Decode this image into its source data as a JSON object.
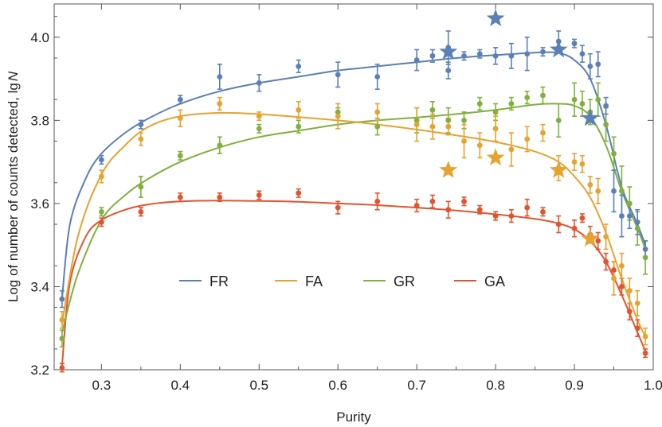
{
  "chart_data": {
    "type": "scatter",
    "xlabel": "Purity",
    "ylabel": "Log of number of counts detected, lg",
    "ylabel_var": "N",
    "xlim": [
      0.24,
      1.0
    ],
    "ylim": [
      3.2,
      4.08
    ],
    "xticks": [
      "0.3",
      "0.4",
      "0.5",
      "0.6",
      "0.7",
      "0.8",
      "0.9",
      "1.0"
    ],
    "yticks": [
      "3.2",
      "3.4",
      "3.6",
      "3.8",
      "4.0"
    ],
    "legend_position": "lower-center",
    "series": [
      {
        "name": "FR",
        "color": "#5b80b8",
        "points": [
          [
            0.25,
            3.37,
            0.02
          ],
          [
            0.3,
            3.705,
            0.01
          ],
          [
            0.35,
            3.79,
            0.01
          ],
          [
            0.4,
            3.85,
            0.01
          ],
          [
            0.45,
            3.905,
            0.03
          ],
          [
            0.5,
            3.89,
            0.02
          ],
          [
            0.55,
            3.93,
            0.015
          ],
          [
            0.6,
            3.91,
            0.03
          ],
          [
            0.65,
            3.905,
            0.03
          ],
          [
            0.7,
            3.945,
            0.025
          ],
          [
            0.72,
            3.955,
            0.015
          ],
          [
            0.74,
            3.92,
            0.02
          ],
          [
            0.74,
            3.975,
            0.04
          ],
          [
            0.76,
            3.955,
            0.01
          ],
          [
            0.78,
            3.96,
            0.01
          ],
          [
            0.8,
            3.955,
            0.02
          ],
          [
            0.82,
            3.955,
            0.03
          ],
          [
            0.84,
            3.96,
            0.04
          ],
          [
            0.86,
            3.965,
            0.01
          ],
          [
            0.88,
            3.99,
            0.025
          ],
          [
            0.9,
            3.985,
            0.01
          ],
          [
            0.91,
            3.96,
            0.02
          ],
          [
            0.92,
            3.93,
            0.03
          ],
          [
            0.93,
            3.935,
            0.03
          ],
          [
            0.94,
            3.835,
            0.02
          ],
          [
            0.95,
            3.63,
            0.05
          ],
          [
            0.96,
            3.57,
            0.05
          ],
          [
            0.97,
            3.57,
            0.03
          ],
          [
            0.98,
            3.555,
            0.03
          ],
          [
            0.99,
            3.49,
            0.02
          ]
        ],
        "fit": [
          [
            0.25,
            3.37
          ],
          [
            0.26,
            3.55
          ],
          [
            0.28,
            3.66
          ],
          [
            0.3,
            3.72
          ],
          [
            0.33,
            3.77
          ],
          [
            0.36,
            3.805
          ],
          [
            0.4,
            3.84
          ],
          [
            0.45,
            3.87
          ],
          [
            0.5,
            3.89
          ],
          [
            0.55,
            3.905
          ],
          [
            0.6,
            3.92
          ],
          [
            0.65,
            3.93
          ],
          [
            0.7,
            3.94
          ],
          [
            0.75,
            3.95
          ],
          [
            0.8,
            3.957
          ],
          [
            0.85,
            3.963
          ],
          [
            0.88,
            3.962
          ],
          [
            0.9,
            3.945
          ],
          [
            0.92,
            3.9
          ],
          [
            0.94,
            3.79
          ],
          [
            0.96,
            3.64
          ],
          [
            0.98,
            3.55
          ],
          [
            0.99,
            3.5
          ]
        ],
        "stars": [
          [
            0.74,
            3.965
          ],
          [
            0.8,
            4.045
          ],
          [
            0.88,
            3.97
          ],
          [
            0.92,
            3.805
          ]
        ]
      },
      {
        "name": "FA",
        "color": "#e6a32e",
        "points": [
          [
            0.25,
            3.32,
            0.02
          ],
          [
            0.3,
            3.665,
            0.015
          ],
          [
            0.35,
            3.755,
            0.015
          ],
          [
            0.4,
            3.805,
            0.02
          ],
          [
            0.45,
            3.84,
            0.015
          ],
          [
            0.5,
            3.81,
            0.01
          ],
          [
            0.55,
            3.825,
            0.02
          ],
          [
            0.6,
            3.81,
            0.03
          ],
          [
            0.65,
            3.82,
            0.02
          ],
          [
            0.7,
            3.79,
            0.04
          ],
          [
            0.72,
            3.785,
            0.03
          ],
          [
            0.74,
            3.785,
            0.02
          ],
          [
            0.76,
            3.75,
            0.04
          ],
          [
            0.78,
            3.74,
            0.03
          ],
          [
            0.8,
            3.78,
            0.03
          ],
          [
            0.82,
            3.73,
            0.04
          ],
          [
            0.84,
            3.755,
            0.03
          ],
          [
            0.86,
            3.77,
            0.02
          ],
          [
            0.88,
            3.685,
            0.03
          ],
          [
            0.9,
            3.7,
            0.02
          ],
          [
            0.91,
            3.695,
            0.02
          ],
          [
            0.92,
            3.645,
            0.02
          ],
          [
            0.93,
            3.63,
            0.03
          ],
          [
            0.94,
            3.52,
            0.03
          ],
          [
            0.95,
            3.42,
            0.04
          ],
          [
            0.96,
            3.45,
            0.03
          ],
          [
            0.97,
            3.39,
            0.03
          ],
          [
            0.98,
            3.36,
            0.03
          ],
          [
            0.99,
            3.28,
            0.02
          ]
        ],
        "fit": [
          [
            0.25,
            3.31
          ],
          [
            0.27,
            3.52
          ],
          [
            0.3,
            3.67
          ],
          [
            0.33,
            3.74
          ],
          [
            0.36,
            3.785
          ],
          [
            0.4,
            3.81
          ],
          [
            0.45,
            3.818
          ],
          [
            0.5,
            3.815
          ],
          [
            0.55,
            3.808
          ],
          [
            0.6,
            3.8
          ],
          [
            0.65,
            3.79
          ],
          [
            0.7,
            3.778
          ],
          [
            0.75,
            3.764
          ],
          [
            0.8,
            3.748
          ],
          [
            0.85,
            3.725
          ],
          [
            0.88,
            3.7
          ],
          [
            0.9,
            3.665
          ],
          [
            0.92,
            3.615
          ],
          [
            0.94,
            3.53
          ],
          [
            0.96,
            3.42
          ],
          [
            0.98,
            3.32
          ],
          [
            0.99,
            3.28
          ]
        ],
        "stars": [
          [
            0.74,
            3.68
          ],
          [
            0.8,
            3.71
          ],
          [
            0.88,
            3.68
          ],
          [
            0.92,
            3.515
          ]
        ]
      },
      {
        "name": "GR",
        "color": "#80b03d",
        "points": [
          [
            0.25,
            3.275,
            0.02
          ],
          [
            0.3,
            3.58,
            0.01
          ],
          [
            0.35,
            3.64,
            0.025
          ],
          [
            0.4,
            3.715,
            0.01
          ],
          [
            0.45,
            3.74,
            0.02
          ],
          [
            0.5,
            3.78,
            0.01
          ],
          [
            0.55,
            3.785,
            0.015
          ],
          [
            0.6,
            3.82,
            0.01
          ],
          [
            0.65,
            3.785,
            0.02
          ],
          [
            0.7,
            3.8,
            0.03
          ],
          [
            0.72,
            3.825,
            0.02
          ],
          [
            0.74,
            3.8,
            0.03
          ],
          [
            0.76,
            3.8,
            0.02
          ],
          [
            0.78,
            3.84,
            0.015
          ],
          [
            0.8,
            3.82,
            0.02
          ],
          [
            0.82,
            3.84,
            0.015
          ],
          [
            0.84,
            3.855,
            0.015
          ],
          [
            0.86,
            3.86,
            0.02
          ],
          [
            0.88,
            3.8,
            0.04
          ],
          [
            0.9,
            3.85,
            0.04
          ],
          [
            0.91,
            3.84,
            0.03
          ],
          [
            0.92,
            3.82,
            0.03
          ],
          [
            0.93,
            3.85,
            0.04
          ],
          [
            0.94,
            3.79,
            0.04
          ],
          [
            0.95,
            3.72,
            0.04
          ],
          [
            0.96,
            3.63,
            0.06
          ],
          [
            0.97,
            3.6,
            0.04
          ],
          [
            0.98,
            3.54,
            0.04
          ],
          [
            0.99,
            3.47,
            0.04
          ]
        ],
        "fit": [
          [
            0.25,
            3.29
          ],
          [
            0.27,
            3.43
          ],
          [
            0.3,
            3.56
          ],
          [
            0.33,
            3.62
          ],
          [
            0.36,
            3.66
          ],
          [
            0.4,
            3.7
          ],
          [
            0.45,
            3.735
          ],
          [
            0.5,
            3.76
          ],
          [
            0.55,
            3.775
          ],
          [
            0.6,
            3.79
          ],
          [
            0.65,
            3.8
          ],
          [
            0.7,
            3.807
          ],
          [
            0.75,
            3.815
          ],
          [
            0.8,
            3.825
          ],
          [
            0.85,
            3.838
          ],
          [
            0.88,
            3.84
          ],
          [
            0.9,
            3.835
          ],
          [
            0.92,
            3.81
          ],
          [
            0.94,
            3.74
          ],
          [
            0.96,
            3.63
          ],
          [
            0.98,
            3.54
          ],
          [
            0.99,
            3.49
          ]
        ],
        "stars": []
      },
      {
        "name": "GA",
        "color": "#e2542e",
        "points": [
          [
            0.25,
            3.205,
            0.01
          ],
          [
            0.3,
            3.555,
            0.01
          ],
          [
            0.35,
            3.58,
            0.01
          ],
          [
            0.4,
            3.615,
            0.01
          ],
          [
            0.45,
            3.615,
            0.01
          ],
          [
            0.5,
            3.62,
            0.01
          ],
          [
            0.55,
            3.625,
            0.01
          ],
          [
            0.6,
            3.59,
            0.015
          ],
          [
            0.65,
            3.605,
            0.02
          ],
          [
            0.7,
            3.595,
            0.015
          ],
          [
            0.72,
            3.605,
            0.015
          ],
          [
            0.74,
            3.585,
            0.02
          ],
          [
            0.76,
            3.605,
            0.01
          ],
          [
            0.78,
            3.585,
            0.01
          ],
          [
            0.8,
            3.57,
            0.01
          ],
          [
            0.82,
            3.57,
            0.015
          ],
          [
            0.84,
            3.59,
            0.02
          ],
          [
            0.86,
            3.58,
            0.01
          ],
          [
            0.88,
            3.55,
            0.02
          ],
          [
            0.9,
            3.54,
            0.02
          ],
          [
            0.91,
            3.565,
            0.01
          ],
          [
            0.92,
            3.525,
            0.02
          ],
          [
            0.93,
            3.51,
            0.02
          ],
          [
            0.94,
            3.46,
            0.02
          ],
          [
            0.95,
            3.44,
            0.02
          ],
          [
            0.96,
            3.4,
            0.02
          ],
          [
            0.97,
            3.34,
            0.02
          ],
          [
            0.98,
            3.3,
            0.02
          ],
          [
            0.99,
            3.24,
            0.01
          ]
        ],
        "fit": [
          [
            0.25,
            3.21
          ],
          [
            0.26,
            3.41
          ],
          [
            0.28,
            3.52
          ],
          [
            0.3,
            3.56
          ],
          [
            0.33,
            3.585
          ],
          [
            0.36,
            3.598
          ],
          [
            0.4,
            3.605
          ],
          [
            0.45,
            3.607
          ],
          [
            0.5,
            3.606
          ],
          [
            0.55,
            3.604
          ],
          [
            0.6,
            3.6
          ],
          [
            0.65,
            3.596
          ],
          [
            0.7,
            3.59
          ],
          [
            0.75,
            3.583
          ],
          [
            0.8,
            3.574
          ],
          [
            0.85,
            3.563
          ],
          [
            0.88,
            3.552
          ],
          [
            0.9,
            3.538
          ],
          [
            0.92,
            3.51
          ],
          [
            0.94,
            3.46
          ],
          [
            0.96,
            3.38
          ],
          [
            0.98,
            3.29
          ],
          [
            0.99,
            3.245
          ]
        ],
        "stars": []
      }
    ]
  }
}
